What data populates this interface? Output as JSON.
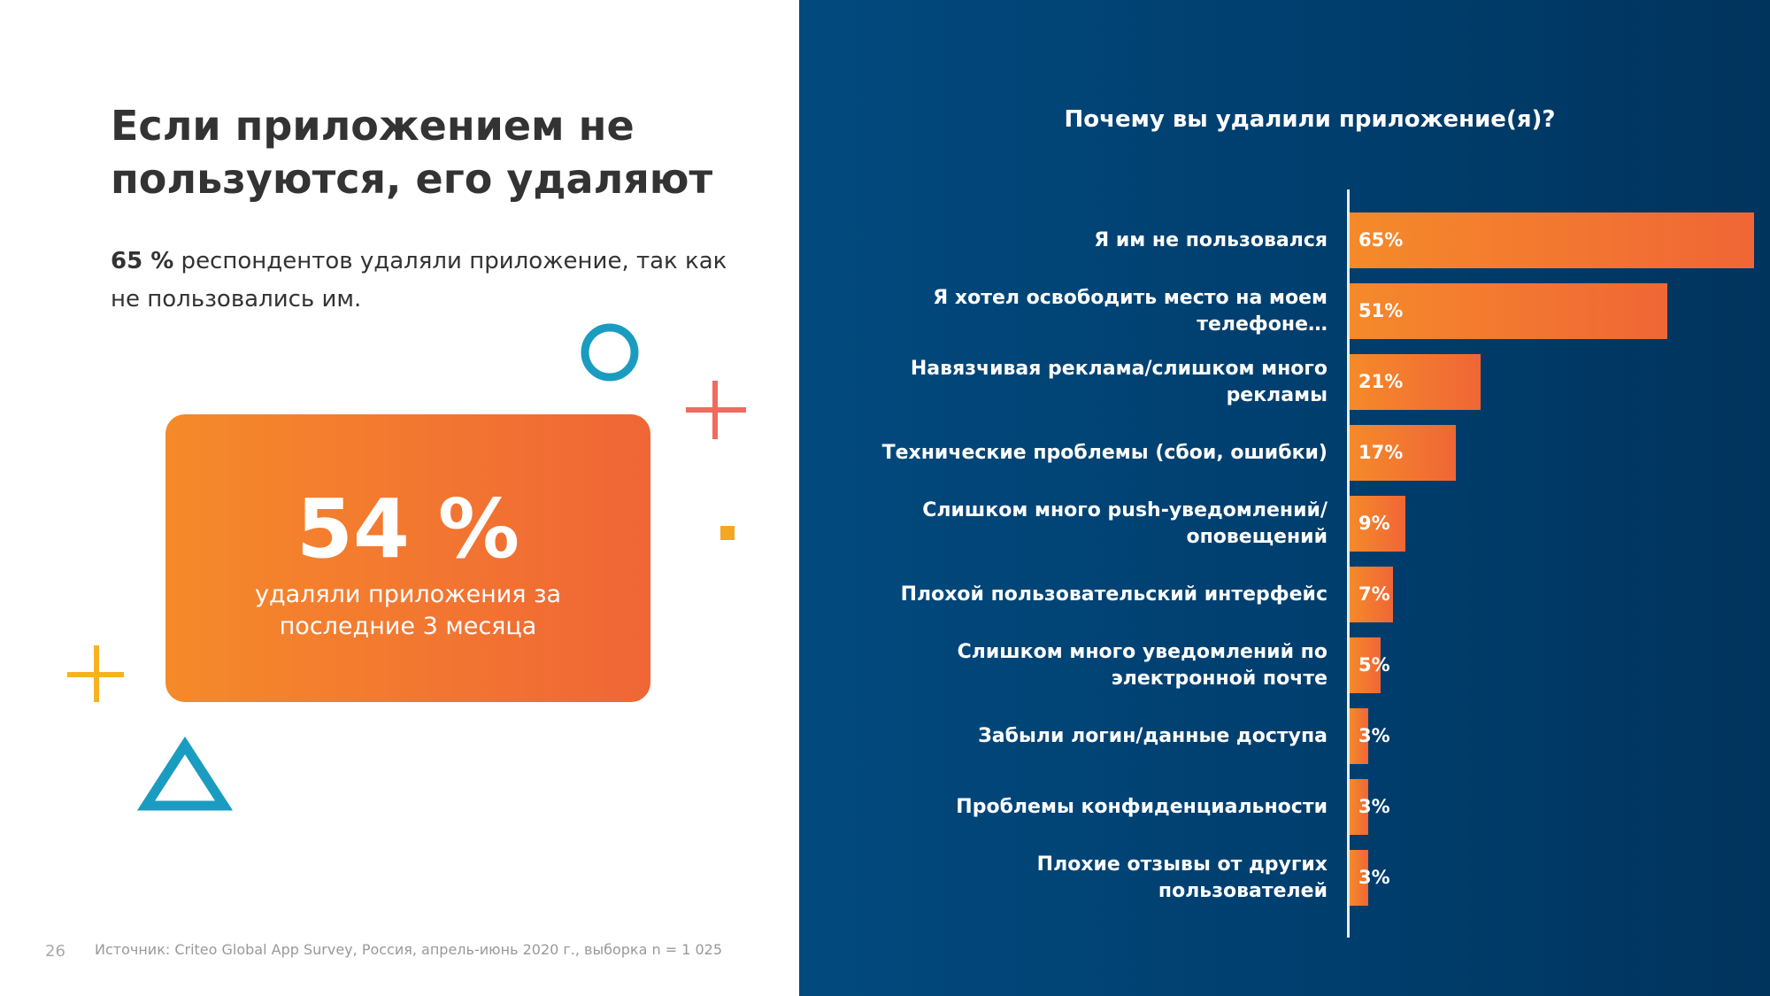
{
  "left": {
    "title_lines": [
      "Если приложением не",
      "пользуются, его удаляют"
    ],
    "subtitle_bold": "65 %",
    "subtitle_rest": " респондентов удаляли приложение, так как не пользовались им.",
    "highlight_value": "54 %",
    "highlight_text_lines": [
      "удаляли приложения за",
      "последние 3 месяца"
    ]
  },
  "footer": {
    "page_number": "26",
    "source": "Источник: Criteo Global App Survey, Россия, апрель-июнь 2020 г., выборка n = 1 025"
  },
  "colors": {
    "bar": "#f27a30",
    "panel": "#003f6e",
    "teal": "#1a9cc0",
    "coral": "#f06a5e",
    "yellow": "#f5b324",
    "orange": "#f5a623"
  },
  "chart_data": {
    "type": "bar",
    "orientation": "horizontal",
    "title": "Почему вы удалили приложение(я)?",
    "categories": [
      "Я им не пользовался",
      "Я хотел освободить место на моем телефоне…",
      "Навязчивая реклама/слишком много рекламы",
      "Технические проблемы (сбои, ошибки)",
      "Слишком много push-уведомлений/оповещений",
      "Плохой пользовательский интерфейс",
      "Слишком много уведомлений по электронной почте",
      "Забыли логин/данные доступа",
      "Проблемы конфиденциальности",
      "Плохие отзывы от других пользователей"
    ],
    "values": [
      65,
      51,
      21,
      17,
      9,
      7,
      5,
      3,
      3,
      3
    ],
    "value_labels": [
      "65%",
      "51%",
      "21%",
      "17%",
      "9%",
      "7%",
      "5%",
      "3%",
      "3%",
      "3%"
    ],
    "unit": "%",
    "grid": false
  }
}
